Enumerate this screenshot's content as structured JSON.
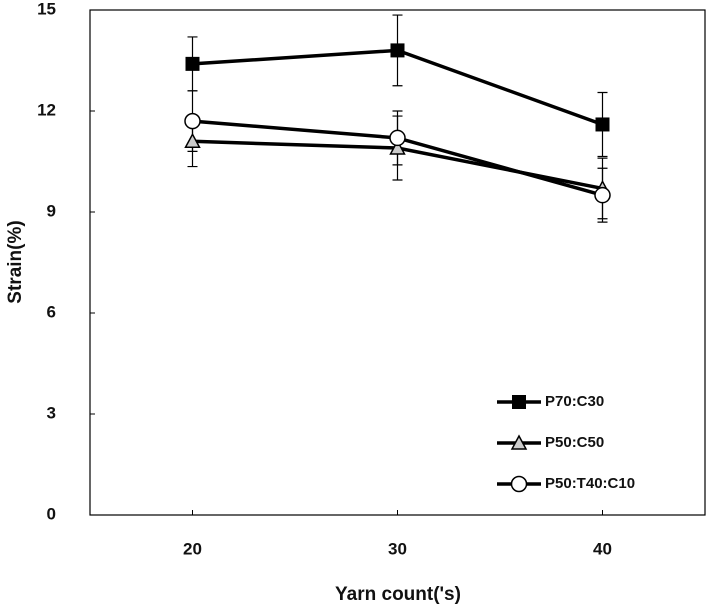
{
  "chart_data": {
    "type": "line",
    "x_label": "Yarn count('s)",
    "y_label": "Strain(%)",
    "x": [
      20,
      30,
      40
    ],
    "xlim": [
      15,
      45
    ],
    "xticks": [
      20,
      30,
      40
    ],
    "ylim": [
      0,
      15
    ],
    "yticks": [
      0,
      3,
      6,
      9,
      12,
      15
    ],
    "legend": "lower right",
    "series": [
      {
        "name": "P70:C30",
        "color": "#000000",
        "marker": "square",
        "values": [
          13.4,
          13.8,
          11.6
        ],
        "errors": [
          0.8,
          1.05,
          0.95
        ]
      },
      {
        "name": "P50:C50",
        "color": "#000000",
        "marker": "triangle",
        "values": [
          11.1,
          10.9,
          9.7
        ],
        "errors": [
          0.75,
          0.95,
          0.9
        ]
      },
      {
        "name": "P50:T40:C10",
        "color": "#000000",
        "marker": "circle",
        "values": [
          11.7,
          11.2,
          9.5
        ],
        "errors": [
          0.9,
          0.8,
          0.8
        ]
      }
    ]
  }
}
